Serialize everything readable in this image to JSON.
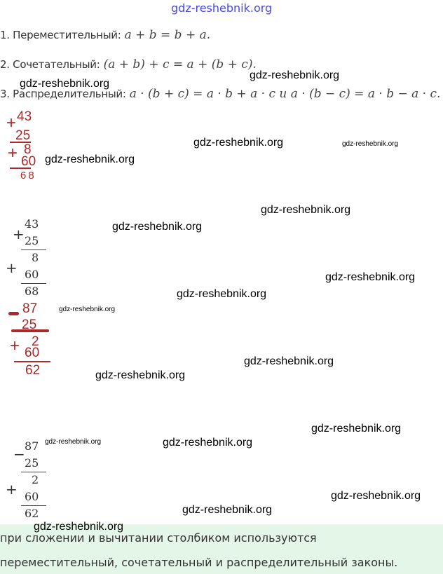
{
  "watermark": "gdz-reshebnik.org",
  "laws": [
    {
      "label": "1. Переместительный:",
      "formula": "a + b = b + a."
    },
    {
      "label": "2. Сочетательный:",
      "formula": "(a + b) + c = a + (b + c)."
    },
    {
      "label": "3. Распределительный:",
      "formula": "a · (b + c) = a · b + a · c и a · (b − c) = a · b − a · c."
    }
  ],
  "handwritten_1": {
    "a": "43",
    "b": "25",
    "c": "8",
    "d": "60",
    "result": "68",
    "op1": "+",
    "op2": "+"
  },
  "typeset_1": {
    "a": "43",
    "b": "25",
    "c": "8",
    "d": "60",
    "result": "68",
    "op1": "+",
    "op2": "+"
  },
  "handwritten_2": {
    "a": "87",
    "b": "25",
    "c": "2",
    "d": "60",
    "result": "62",
    "op1": "−",
    "op2": "+"
  },
  "typeset_2": {
    "a": "87",
    "b": "25",
    "c": "2",
    "d": "60",
    "result": "62",
    "op1": "−",
    "op2": "+"
  },
  "conclusion": {
    "line1": "при сложении и вычитании столбиком используются",
    "line2": "переместительный, сочетательный и распределительный законы."
  },
  "colors": {
    "handwriting": "#a82a2a",
    "footer_bg": "#e4f6e8",
    "top_watermark": "#4646e6"
  }
}
